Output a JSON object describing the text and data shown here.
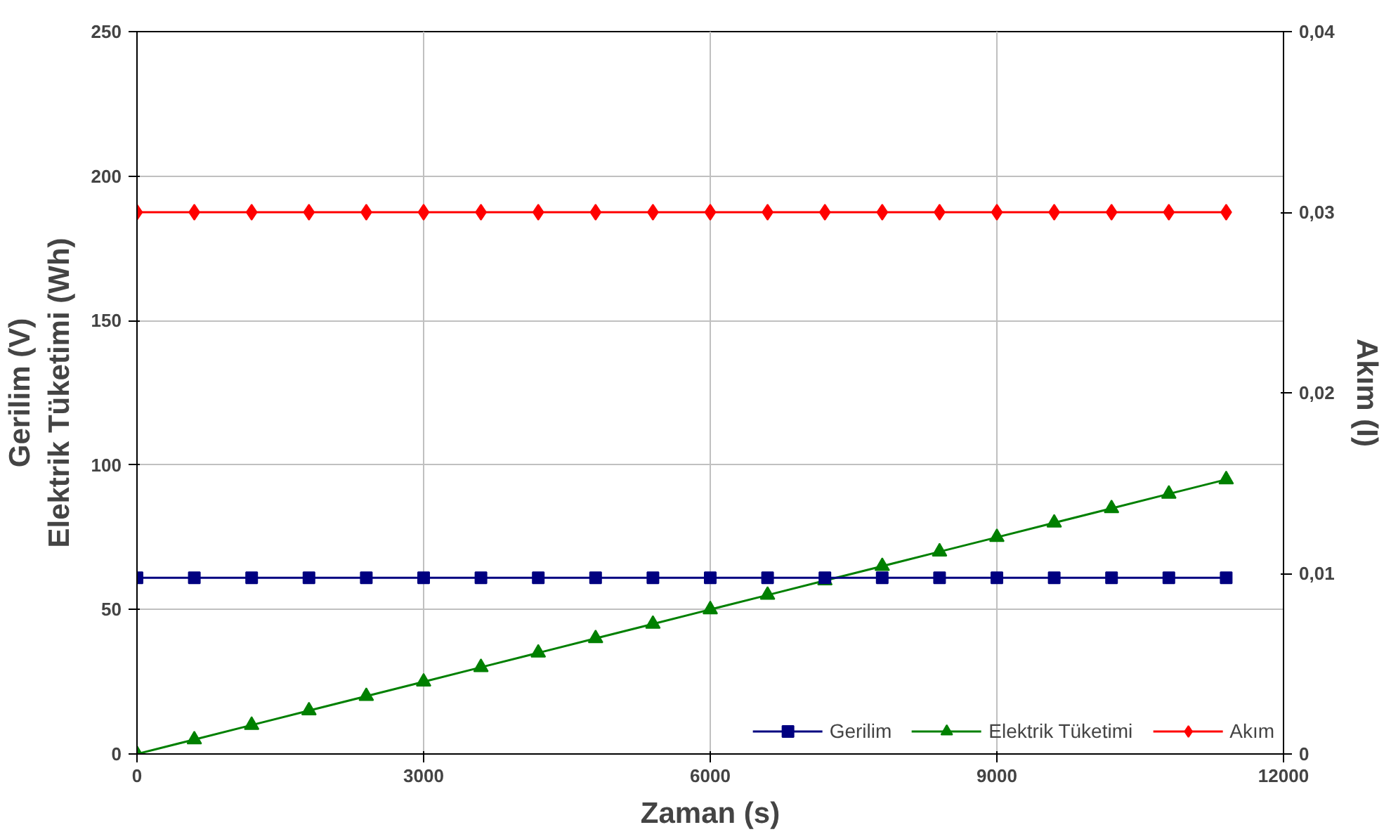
{
  "chart_data": {
    "type": "line",
    "xlabel": "Zaman (s)",
    "ylabel": "Gerilim (V)\nElektrik Tüketimi (Wh)",
    "y2label": "Akım (I)",
    "x": [
      0,
      600,
      1200,
      1800,
      2400,
      3000,
      3600,
      4200,
      4800,
      5400,
      6000,
      6600,
      7200,
      7800,
      8400,
      9000,
      9600,
      10200,
      10800,
      11400
    ],
    "series": [
      {
        "name": "Gerilim",
        "color": "#000080",
        "marker": "square",
        "values": [
          61,
          61,
          61,
          61,
          61,
          61,
          61,
          61,
          61,
          61,
          61,
          61,
          61,
          61,
          61,
          61,
          61,
          61,
          61,
          61
        ]
      },
      {
        "name": "Elektrik Tüketimi",
        "color": "#008000",
        "marker": "triangle",
        "values": [
          0,
          5,
          10,
          15,
          20,
          25,
          30,
          35,
          40,
          45,
          50,
          55,
          60,
          65,
          70,
          75,
          80,
          85,
          90,
          95
        ]
      },
      {
        "name": "Akım",
        "color": "#ff0000",
        "marker": "diamond",
        "axis": "y2",
        "values": [
          0.03,
          0.03,
          0.03,
          0.03,
          0.03,
          0.03,
          0.03,
          0.03,
          0.03,
          0.03,
          0.03,
          0.03,
          0.03,
          0.03,
          0.03,
          0.03,
          0.03,
          0.03,
          0.03,
          0.03
        ]
      }
    ],
    "xlim": [
      0,
      12000
    ],
    "xticks": [
      0,
      3000,
      6000,
      9000,
      12000
    ],
    "ylim": [
      0,
      250
    ],
    "yticks": [
      0,
      50,
      100,
      150,
      200,
      250
    ],
    "y2lim": [
      0,
      0.04
    ],
    "y2ticks": [
      0,
      {
        "value": 0.01,
        "label": "0,01"
      },
      {
        "value": 0.02,
        "label": "0,02"
      },
      {
        "value": 0.03,
        "label": "0,03"
      },
      {
        "value": 0.04,
        "label": "0,04"
      }
    ],
    "grid": true,
    "legend": "bottom right"
  }
}
